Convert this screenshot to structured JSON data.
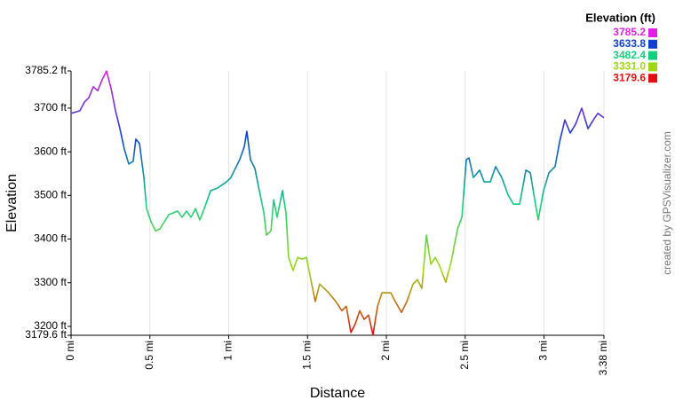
{
  "chart_data": {
    "type": "line",
    "x_label": "Distance",
    "y_label": "Elevation",
    "legend_title": "Elevation (ft)",
    "credit": "created by GPSVisualizer.com",
    "xlim": [
      0,
      3.38
    ],
    "ylim": [
      3179.6,
      3785.2
    ],
    "xticks": [
      {
        "value": 0,
        "label": "0 mi"
      },
      {
        "value": 0.5,
        "label": "0.5 mi"
      },
      {
        "value": 1,
        "label": "1 mi"
      },
      {
        "value": 1.5,
        "label": "1.5 mi"
      },
      {
        "value": 2,
        "label": "2 mi"
      },
      {
        "value": 2.5,
        "label": "2.5 mi"
      },
      {
        "value": 3,
        "label": "3 mi"
      },
      {
        "value": 3.38,
        "label": "3.38 mi"
      }
    ],
    "yticks": [
      {
        "value": 3179.6,
        "label": "3179.6 ft"
      },
      {
        "value": 3200,
        "label": "3200 ft"
      },
      {
        "value": 3300,
        "label": "3300 ft"
      },
      {
        "value": 3400,
        "label": "3400 ft"
      },
      {
        "value": 3500,
        "label": "3500 ft"
      },
      {
        "value": 3600,
        "label": "3600 ft"
      },
      {
        "value": 3700,
        "label": "3700 ft"
      },
      {
        "value": 3785.2,
        "label": "3785.2 ft"
      }
    ],
    "xgrid": true,
    "color_scale": [
      {
        "value": 3785.2,
        "color": "#e020e0"
      },
      {
        "value": 3633.8,
        "color": "#1040d0"
      },
      {
        "value": 3482.4,
        "color": "#10d080"
      },
      {
        "value": 3331,
        "label": "3331.0",
        "color": "#a0d810"
      },
      {
        "value": 3179.6,
        "color": "#e01010"
      }
    ],
    "x": [
      0,
      0.056,
      0.085,
      0.113,
      0.141,
      0.169,
      0.197,
      0.225,
      0.254,
      0.282,
      0.31,
      0.338,
      0.366,
      0.394,
      0.411,
      0.434,
      0.462,
      0.479,
      0.507,
      0.535,
      0.563,
      0.62,
      0.676,
      0.704,
      0.732,
      0.761,
      0.789,
      0.817,
      0.845,
      0.885,
      0.93,
      0.986,
      1.014,
      1.042,
      1.07,
      1.099,
      1.115,
      1.138,
      1.166,
      1.194,
      1.223,
      1.239,
      1.268,
      1.285,
      1.307,
      1.341,
      1.363,
      1.38,
      1.408,
      1.437,
      1.465,
      1.493,
      1.521,
      1.549,
      1.577,
      1.634,
      1.679,
      1.718,
      1.746,
      1.775,
      1.803,
      1.831,
      1.859,
      1.887,
      1.915,
      1.944,
      1.972,
      2.028,
      2.056,
      2.096,
      2.13,
      2.169,
      2.197,
      2.225,
      2.254,
      2.282,
      2.31,
      2.338,
      2.377,
      2.411,
      2.451,
      2.479,
      2.507,
      2.524,
      2.552,
      2.592,
      2.62,
      2.659,
      2.693,
      2.732,
      2.772,
      2.806,
      2.845,
      2.885,
      2.913,
      2.941,
      2.963,
      2.997,
      3.031,
      3.07,
      3.099,
      3.132,
      3.166,
      3.2,
      3.239,
      3.279,
      3.313,
      3.341,
      3.38
    ],
    "values": [
      3688,
      3694,
      3714,
      3724,
      3749,
      3740,
      3765,
      3785,
      3745,
      3694,
      3653,
      3606,
      3572,
      3578,
      3629,
      3619,
      3541,
      3470,
      3440,
      3419,
      3423,
      3456,
      3464,
      3450,
      3464,
      3450,
      3470,
      3444,
      3470,
      3511,
      3517,
      3531,
      3541,
      3562,
      3582,
      3612,
      3647,
      3582,
      3562,
      3511,
      3460,
      3409,
      3419,
      3490,
      3450,
      3511,
      3460,
      3358,
      3328,
      3358,
      3354,
      3358,
      3307,
      3257,
      3297,
      3277,
      3257,
      3236,
      3246,
      3186,
      3206,
      3236,
      3216,
      3226,
      3180,
      3246,
      3277,
      3277,
      3257,
      3232,
      3257,
      3297,
      3307,
      3287,
      3409,
      3342,
      3358,
      3338,
      3301,
      3348,
      3423,
      3450,
      3582,
      3586,
      3541,
      3558,
      3531,
      3531,
      3566,
      3541,
      3501,
      3480,
      3480,
      3558,
      3552,
      3490,
      3444,
      3511,
      3552,
      3566,
      3623,
      3673,
      3643,
      3663,
      3700,
      3653,
      3673,
      3688,
      3678
    ]
  }
}
